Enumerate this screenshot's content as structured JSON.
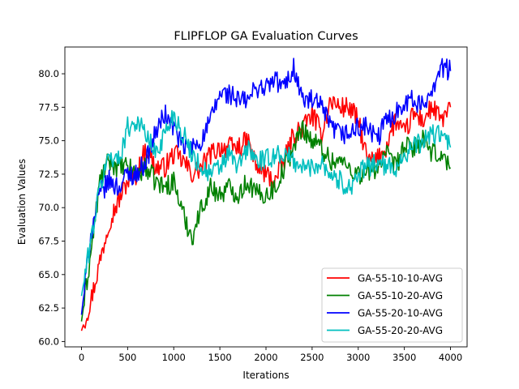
{
  "chart_data": {
    "type": "line",
    "title": "FLIPFLOP GA Evaluation Curves",
    "xlabel": "Iterations",
    "ylabel": "Evaluation Values",
    "xlim": [
      -180,
      4180
    ],
    "ylim": [
      59.6,
      82.0
    ],
    "xticks": [
      0,
      500,
      1000,
      1500,
      2000,
      2500,
      3000,
      3500,
      4000
    ],
    "xtick_labels": [
      "0",
      "500",
      "1000",
      "1500",
      "2000",
      "2500",
      "3000",
      "3500",
      "4000"
    ],
    "yticks": [
      60.0,
      62.5,
      65.0,
      67.5,
      70.0,
      72.5,
      75.0,
      77.5,
      80.0
    ],
    "ytick_labels": [
      "60.0",
      "62.5",
      "65.0",
      "67.5",
      "70.0",
      "72.5",
      "75.0",
      "77.5",
      "80.0"
    ],
    "grid": false,
    "legend_position": "lower-right",
    "x": [
      0,
      100,
      200,
      300,
      400,
      500,
      600,
      700,
      800,
      900,
      1000,
      1100,
      1200,
      1300,
      1400,
      1500,
      1600,
      1700,
      1800,
      1900,
      2000,
      2100,
      2200,
      2300,
      2400,
      2500,
      2600,
      2700,
      2800,
      2900,
      3000,
      3100,
      3200,
      3300,
      3400,
      3500,
      3600,
      3700,
      3800,
      3900,
      4000
    ],
    "series": [
      {
        "name": "GA-55-10-10-AVG",
        "color": "#ff0000",
        "values": [
          60.8,
          63.0,
          66.0,
          69.0,
          70.5,
          72.0,
          72.5,
          74.5,
          73.0,
          73.0,
          74.0,
          73.5,
          72.5,
          73.0,
          74.0,
          74.5,
          74.5,
          74.5,
          75.0,
          73.0,
          72.5,
          72.0,
          73.5,
          75.5,
          76.0,
          77.0,
          75.5,
          78.0,
          77.5,
          77.5,
          76.5,
          73.5,
          73.5,
          74.5,
          76.5,
          75.5,
          77.0,
          76.5,
          77.5,
          76.5,
          77.5
        ]
      },
      {
        "name": "GA-55-10-20-AVG",
        "color": "#008000",
        "values": [
          61.5,
          66.5,
          72.0,
          73.5,
          73.0,
          73.0,
          72.5,
          73.0,
          72.0,
          71.5,
          72.0,
          69.5,
          67.8,
          70.0,
          71.5,
          71.0,
          71.5,
          71.0,
          72.0,
          71.0,
          71.0,
          71.5,
          73.0,
          74.5,
          76.0,
          75.0,
          74.5,
          73.5,
          73.5,
          73.0,
          72.5,
          72.5,
          73.0,
          74.0,
          73.0,
          74.5,
          74.5,
          75.0,
          74.0,
          74.0,
          73.0
        ]
      },
      {
        "name": "GA-55-20-10-AVG",
        "color": "#0000ff",
        "values": [
          62.0,
          68.0,
          71.0,
          72.0,
          71.5,
          72.5,
          72.5,
          73.5,
          75.5,
          77.0,
          76.0,
          74.5,
          74.5,
          75.0,
          76.5,
          78.5,
          78.5,
          78.0,
          78.0,
          79.0,
          79.0,
          79.5,
          79.0,
          80.5,
          78.0,
          78.0,
          77.5,
          76.0,
          75.5,
          75.5,
          76.0,
          76.0,
          75.0,
          76.5,
          77.0,
          78.0,
          78.0,
          77.5,
          79.0,
          80.5,
          80.2
        ]
      },
      {
        "name": "GA-55-20-20-AVG",
        "color": "#00bfbf",
        "values": [
          63.4,
          67.5,
          71.5,
          74.0,
          73.5,
          76.0,
          76.5,
          75.5,
          74.0,
          75.5,
          77.0,
          75.5,
          74.0,
          73.0,
          72.5,
          73.0,
          74.0,
          73.0,
          74.5,
          73.5,
          73.5,
          74.0,
          74.0,
          73.5,
          73.0,
          73.0,
          73.5,
          72.5,
          72.0,
          71.5,
          72.5,
          73.0,
          73.5,
          73.0,
          73.0,
          74.0,
          74.5,
          75.0,
          75.5,
          75.5,
          74.5
        ]
      }
    ]
  }
}
